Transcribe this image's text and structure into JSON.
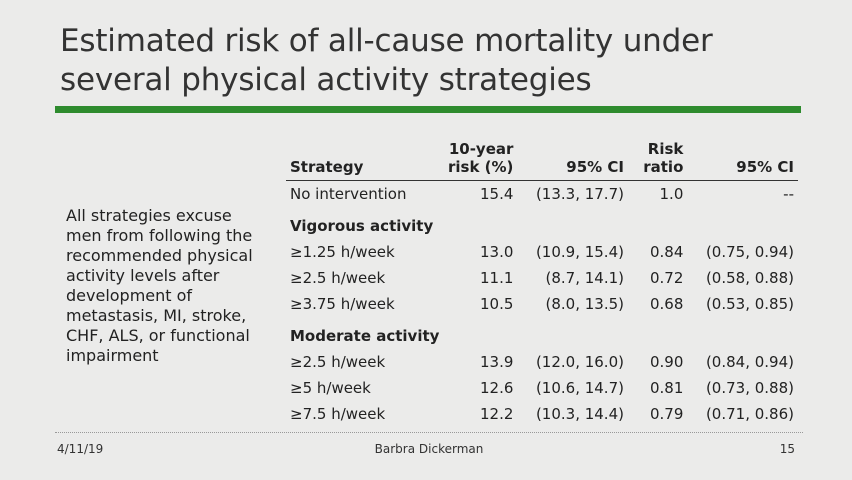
{
  "slide": {
    "title": "Estimated risk of all-cause mortality under several physical activity strategies",
    "note": "All strategies excuse men from following the recommended physical activity levels after development of metastasis, MI, stroke, CHF, ALS, or functional impairment",
    "footer": {
      "date": "4/11/19",
      "author": "Barbra Dickerman",
      "page": "15"
    },
    "accent_color": "#2e8b2e"
  },
  "table": {
    "headers": {
      "strategy": "Strategy",
      "risk": "10-year risk (%)",
      "ci1": "95% CI",
      "ratio": "Risk ratio",
      "ci2": "95% CI"
    },
    "baseline": {
      "strategy": "No intervention",
      "risk": "15.4",
      "ci1": "(13.3, 17.7)",
      "ratio": "1.0",
      "ci2": "--"
    },
    "groups": [
      {
        "label": "Vigorous activity",
        "rows": [
          {
            "strategy": "≥1.25 h/week",
            "risk": "13.0",
            "ci1": "(10.9, 15.4)",
            "ratio": "0.84",
            "ci2": "(0.75, 0.94)"
          },
          {
            "strategy": "≥2.5 h/week",
            "risk": "11.1",
            "ci1": "(8.7, 14.1)",
            "ratio": "0.72",
            "ci2": "(0.58, 0.88)"
          },
          {
            "strategy": "≥3.75 h/week",
            "risk": "10.5",
            "ci1": "(8.0, 13.5)",
            "ratio": "0.68",
            "ci2": "(0.53, 0.85)"
          }
        ]
      },
      {
        "label": "Moderate activity",
        "rows": [
          {
            "strategy": "≥2.5 h/week",
            "risk": "13.9",
            "ci1": "(12.0, 16.0)",
            "ratio": "0.90",
            "ci2": "(0.84, 0.94)"
          },
          {
            "strategy": "≥5 h/week",
            "risk": "12.6",
            "ci1": "(10.6, 14.7)",
            "ratio": "0.81",
            "ci2": "(0.73, 0.88)"
          },
          {
            "strategy": "≥7.5 h/week",
            "risk": "12.2",
            "ci1": "(10.3, 14.4)",
            "ratio": "0.79",
            "ci2": "(0.71, 0.86)"
          }
        ]
      }
    ]
  }
}
